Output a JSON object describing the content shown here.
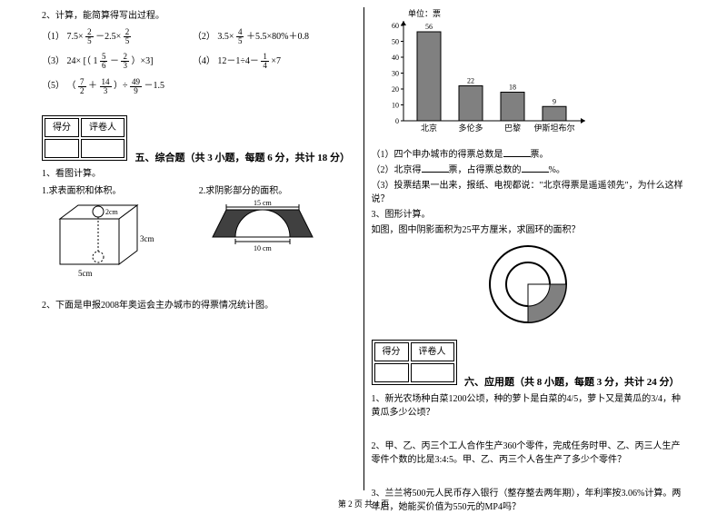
{
  "left": {
    "q2_title": "2、计算，能简算得写出过程。",
    "probs": {
      "p1_label": "（1）",
      "p1_a": "7.5×",
      "p1_f1n": "2",
      "p1_f1d": "5",
      "p1_b": "－2.5×",
      "p1_f2n": "2",
      "p1_f2d": "5",
      "p2_label": "（2）",
      "p2_a": "3.5×",
      "p2_f1n": "4",
      "p2_f1d": "5",
      "p2_b": "＋5.5×80%＋0.8",
      "p3_label": "（3）",
      "p3_a": "24×",
      "p3_lb": "[（",
      "p3_mixed": "1",
      "p3_f1n": "5",
      "p3_f1d": "6",
      "p3_minus": "－",
      "p3_f2n": "2",
      "p3_f2d": "3",
      "p3_rb": "）×3]",
      "p4_label": "（4）",
      "p4_a": "12－1÷4－",
      "p4_f1n": "1",
      "p4_f1d": "4",
      "p4_b": "×7",
      "p5_label": "（5）",
      "p5_lp": "（",
      "p5_f1n": "7",
      "p5_f1d": "2",
      "p5_plus": "＋",
      "p5_f2n": "14",
      "p5_f2d": "3",
      "p5_rp": "）÷",
      "p5_f3n": "49",
      "p5_f3d": "9",
      "p5_b": "－1.5"
    },
    "score_got": "得分",
    "score_marker": "评卷人",
    "section5": "五、综合题（共 3 小题，每题 6 分，共计 18 分）",
    "q5_1": "1、看图计算。",
    "q5_1a": "1.求表面积和体积。",
    "q5_1b": "2.求阴影部分的面积。",
    "box_h": "3cm",
    "box_w": "5cm",
    "box_hole": "2cm",
    "arch_top": "15 cm",
    "arch_bottom": "10 cm",
    "q5_2": "2、下面是申报2008年奥运会主办城市的得票情况统计图。"
  },
  "right": {
    "chart": {
      "unit": "单位：票",
      "y_max": 60,
      "y_step": 10,
      "y_ticks": [
        "60",
        "50",
        "40",
        "30",
        "20",
        "10",
        "0"
      ],
      "bars": [
        {
          "label": "北京",
          "value": 56,
          "text": "56"
        },
        {
          "label": "多伦多",
          "value": 22,
          "text": "22"
        },
        {
          "label": "巴黎",
          "value": 18,
          "text": "18"
        },
        {
          "label": "伊斯坦布尔",
          "value": 9,
          "text": "9"
        }
      ],
      "bar_color": "#808080",
      "axis_color": "#000000"
    },
    "q1": "（1）四个申办城市的得票总数是",
    "q1_end": "票。",
    "q2a": "（2）北京得",
    "q2b": "票，占得票总数的",
    "q2c": "%。",
    "q3": "（3）投票结果一出来，报纸、电视都说：\"北京得票是遥遥领先\"，为什么这样说？",
    "q3_title": "3、图形计算。",
    "q3_body": "如图，图中阴影面积为25平方厘米，求圆环的面积？",
    "score_got": "得分",
    "score_marker": "评卷人",
    "section6": "六、应用题（共 8 小题，每题 3 分，共计 24 分）",
    "q6_1": "1、新光农场种白菜1200公顷，种的萝卜是白菜的4/5，萝卜又是黄瓜的3/4，种黄瓜多少公顷？",
    "q6_2": "2、甲、乙、丙三个工人合作生产360个零件，完成任务时甲、乙、丙三人生产零件个数的比是3:4:5。甲、乙、丙三个人各生产了多少个零件？",
    "q6_3": "3、兰兰将500元人民币存入银行（整存整去两年期），年利率按3.06%计算。两年后，她能买价值为550元的MP4吗？"
  },
  "footer": "第 2 页 共 4 页"
}
